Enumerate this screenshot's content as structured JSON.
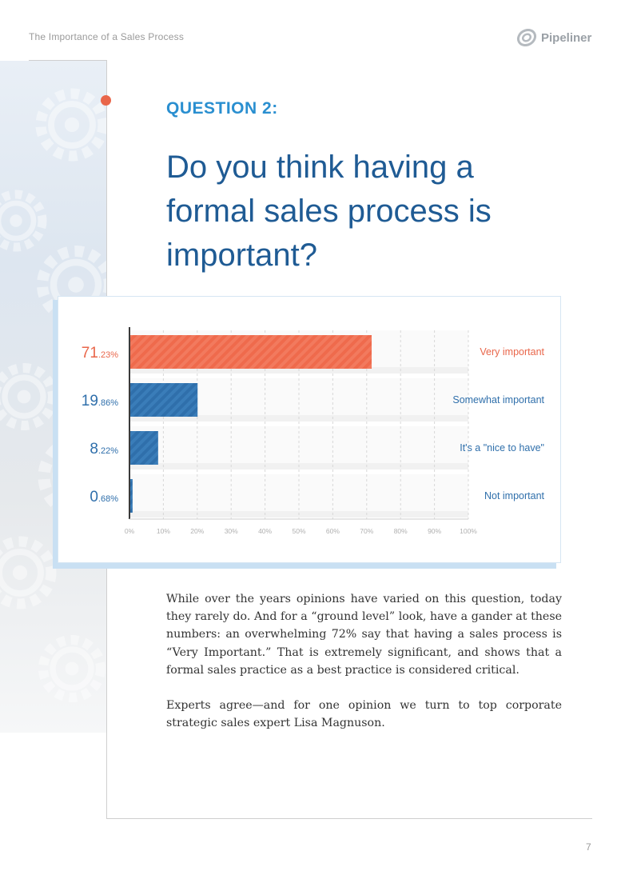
{
  "header": {
    "title": "The Importance of a Sales Process",
    "logo_text": "Pipeliner"
  },
  "question": {
    "label": "QUESTION 2:",
    "text_lines": [
      "Do you think having a",
      "formal sales process is",
      "important?"
    ]
  },
  "chart_data": {
    "type": "bar",
    "orientation": "horizontal",
    "categories": [
      "Very important",
      "Somewhat important",
      "It's a \"nice to have\"",
      "Not important"
    ],
    "values": [
      71.23,
      19.86,
      8.22,
      0.68
    ],
    "value_labels": [
      {
        "int": "71",
        "dec": ".23%"
      },
      {
        "int": "19",
        "dec": ".86%"
      },
      {
        "int": "8",
        "dec": ".22%"
      },
      {
        "int": "0",
        "dec": ".68%"
      }
    ],
    "xlim": [
      0,
      100
    ],
    "x_ticks": [
      "0%",
      "10%",
      "20%",
      "30%",
      "40%",
      "50%",
      "60%",
      "70%",
      "80%",
      "90%",
      "100%"
    ],
    "grid": true,
    "colors": [
      "#ef6a4c",
      "#2f6fab",
      "#2f6fab",
      "#2f6fab"
    ],
    "label_colors": [
      "#e9664a",
      "#2f6fab",
      "#2f6fab",
      "#2f6fab"
    ]
  },
  "body": {
    "paragraphs": [
      "While over the years opinions have varied on this question, today they rarely do. And for a “ground level” look, have a gander at these numbers: an overwhelming 72% say that having a sales process is “Very Important.” That is extremely significant, and shows that a formal sales practice as a best practice is considered critical.",
      "Experts agree—and for one opinion we turn to top corporate strategic sales expert Lisa Magnuson."
    ]
  },
  "footer": {
    "page_number": "7"
  }
}
